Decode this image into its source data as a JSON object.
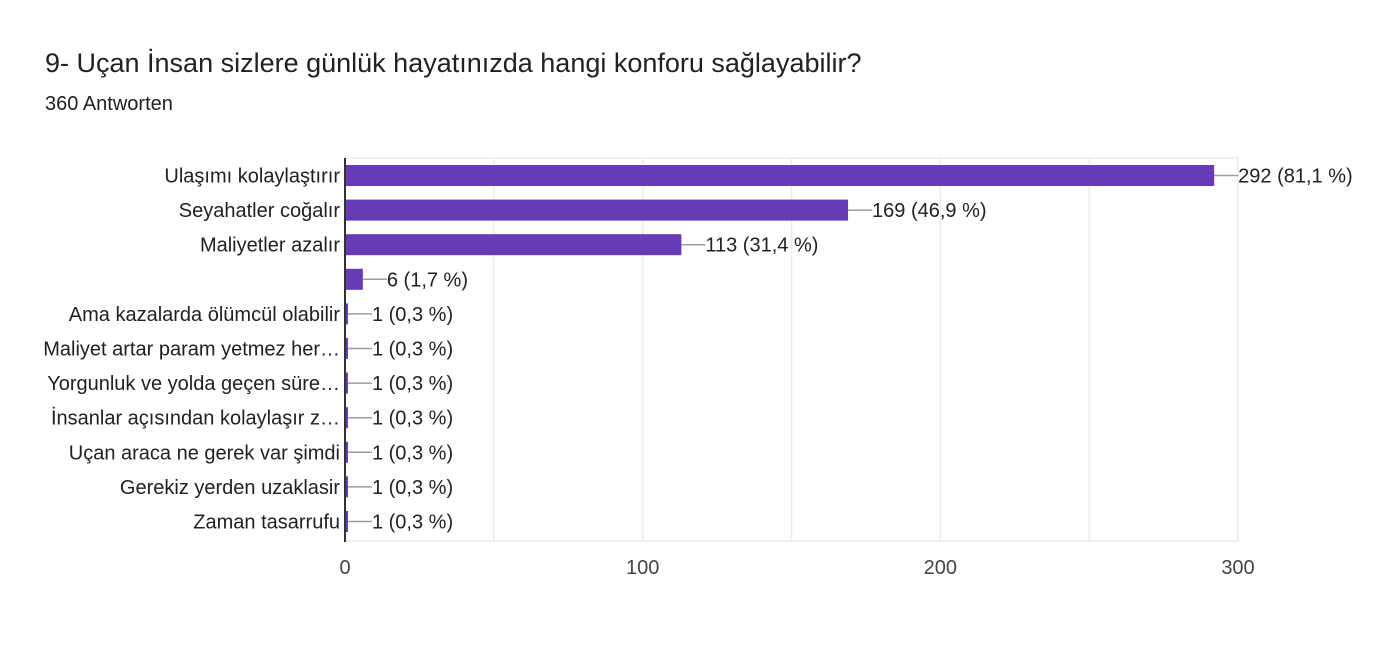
{
  "title": "9- Uçan İnsan sizlere günlük hayatınızda hangi konforu sağlayabilir?",
  "subtitle": "360 Antworten",
  "colors": {
    "bar": "#673ab7",
    "grid": "#ececec",
    "axis": "#333333",
    "text": "#202124",
    "tick": "#444444",
    "leader": "#9e9e9e"
  },
  "chart_data": {
    "type": "bar",
    "orientation": "horizontal",
    "categories": [
      "Ulaşımı kolaylaştırır",
      "Seyahatler coğalır",
      "Maliyetler azalır",
      "",
      "Ama kazalarda ölümcül olabilir",
      "Maliyet artar param yetmez her…",
      "Yorgunluk ve yolda geçen süre…",
      "İnsanlar açısından kolaylaşır z…",
      "Uçan araca ne gerek var şimdi",
      "Gerekiz yerden uzaklasir",
      "Zaman tasarrufu"
    ],
    "values": [
      292,
      169,
      113,
      6,
      1,
      1,
      1,
      1,
      1,
      1,
      1
    ],
    "data_labels": [
      "292 (81,1 %)",
      "169 (46,9 %)",
      "113 (31,4 %)",
      "6 (1,7 %)",
      "1 (0,3 %)",
      "1 (0,3 %)",
      "1 (0,3 %)",
      "1 (0,3 %)",
      "1 (0,3 %)",
      "1 (0,3 %)",
      "1 (0,3 %)"
    ],
    "xlim": [
      0,
      300
    ],
    "xticks": [
      0,
      100,
      200,
      300
    ],
    "minor_grid_step": 50,
    "grid": true,
    "legend": "none"
  }
}
